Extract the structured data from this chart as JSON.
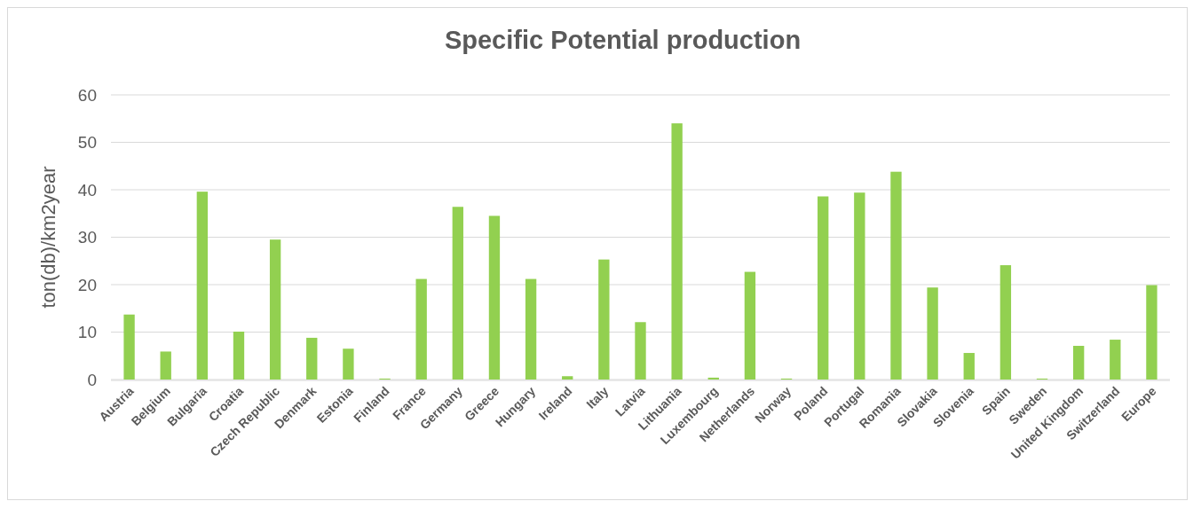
{
  "chart_data": {
    "type": "bar",
    "title": "Specific Potential production",
    "ylabel": "ton(db)/km2year",
    "categories": [
      "Austria",
      "Belgium",
      "Bulgaria",
      "Croatia",
      "Czech Republic",
      "Denmark",
      "Estonia",
      "Finland",
      "France",
      "Germany",
      "Greece",
      "Hungary",
      "Ireland",
      "Italy",
      "Latvia",
      "Lithuania",
      "Luxembourg",
      "Netherlands",
      "Norway",
      "Poland",
      "Portugal",
      "Romania",
      "Slovakia",
      "Slovenia",
      "Spain",
      "Sweden",
      "United Kingdom",
      "Switzerland",
      "Europe"
    ],
    "values": [
      13.7,
      5.9,
      39.6,
      10.1,
      29.5,
      8.8,
      6.5,
      0.2,
      21.2,
      36.4,
      34.5,
      21.2,
      0.7,
      25.3,
      12.1,
      54.0,
      0.4,
      22.7,
      0.2,
      38.6,
      39.4,
      43.8,
      19.4,
      5.6,
      24.1,
      0.2,
      7.1,
      8.4,
      19.9
    ],
    "color": "#92d050",
    "ylim": [
      0,
      60
    ],
    "yticks": [
      0,
      10,
      20,
      30,
      40,
      50,
      60
    ],
    "grid": "y"
  }
}
